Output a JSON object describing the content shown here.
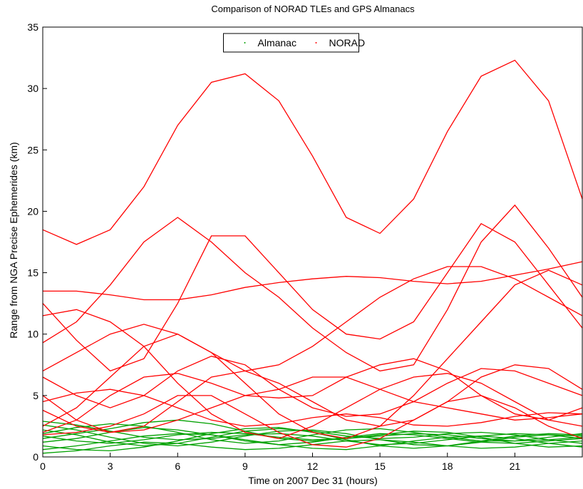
{
  "chart_data": {
    "type": "line",
    "title": "Comparison of NORAD TLEs and GPS Almanacs",
    "x_label": "Time on 2007 Dec 31 (hours)",
    "y_label": "Range from NGA Precise Ephemerides (km)",
    "x": [
      0,
      1.5,
      3,
      4.5,
      6,
      7.5,
      9,
      10.5,
      12,
      13.5,
      15,
      16.5,
      18,
      19.5,
      21,
      22.5,
      24
    ],
    "xlim": [
      0,
      24
    ],
    "xticks": [
      0,
      3,
      6,
      9,
      12,
      15,
      18,
      21
    ],
    "ylim": [
      0,
      35
    ],
    "yticks": [
      0,
      5,
      10,
      15,
      20,
      25,
      30,
      35
    ],
    "grid": false,
    "legend": "top",
    "series": [
      {
        "name": "Almanac",
        "color": "#00a000",
        "values": [
          [
            1.2,
            1.5,
            2.0,
            2.4,
            2.2,
            1.8,
            1.3,
            1.0,
            1.2,
            1.6,
            1.9,
            1.8,
            1.5,
            1.2,
            1.1,
            1.3,
            1.5
          ],
          [
            2.6,
            2.2,
            1.6,
            1.1,
            0.9,
            1.2,
            1.7,
            2.1,
            2.2,
            1.9,
            1.4,
            1.0,
            0.9,
            1.2,
            1.6,
            1.8,
            1.7
          ],
          [
            0.6,
            0.9,
            1.3,
            1.7,
            1.9,
            1.8,
            1.4,
            1.0,
            0.7,
            0.6,
            0.9,
            1.3,
            1.6,
            1.7,
            1.5,
            1.1,
            0.8
          ],
          [
            1.9,
            2.4,
            2.7,
            2.5,
            2.0,
            1.4,
            1.1,
            1.3,
            1.8,
            2.2,
            2.3,
            2.0,
            1.6,
            1.3,
            1.3,
            1.6,
            1.9
          ],
          [
            0.9,
            0.6,
            0.5,
            0.8,
            1.3,
            1.9,
            2.3,
            2.4,
            2.0,
            1.4,
            0.9,
            0.7,
            0.9,
            1.3,
            1.7,
            1.9,
            1.8
          ],
          [
            2.2,
            1.8,
            1.2,
            0.9,
            1.1,
            1.6,
            2.1,
            2.3,
            2.1,
            1.7,
            1.5,
            1.6,
            1.9,
            2.0,
            1.8,
            1.4,
            1.1
          ],
          [
            1.5,
            1.9,
            2.3,
            2.8,
            3.0,
            2.7,
            2.1,
            1.5,
            1.3,
            1.5,
            1.8,
            2.1,
            2.0,
            1.6,
            1.1,
            0.8,
            0.9
          ],
          [
            0.3,
            0.5,
            0.9,
            1.2,
            1.1,
            0.8,
            0.6,
            0.7,
            1.0,
            1.3,
            1.4,
            1.2,
            0.9,
            0.7,
            0.8,
            1.1,
            1.3
          ],
          [
            1.7,
            1.3,
            1.1,
            1.4,
            1.8,
            2.0,
            1.9,
            1.6,
            1.4,
            1.5,
            1.7,
            1.9,
            1.8,
            1.5,
            1.3,
            1.4,
            1.6
          ],
          [
            2.9,
            2.6,
            2.1,
            1.6,
            1.4,
            1.5,
            1.8,
            1.9,
            1.7,
            1.3,
            1.0,
            1.1,
            1.4,
            1.7,
            1.9,
            1.8,
            1.5
          ]
        ]
      },
      {
        "name": "NORAD",
        "color": "#ff0000",
        "values": [
          [
            18.5,
            17.3,
            18.5,
            22,
            27,
            30.5,
            31.2,
            29,
            24.5,
            19.5,
            18.2,
            21,
            26.5,
            31,
            32.3,
            29,
            21
          ],
          [
            13.5,
            13.5,
            13.2,
            12.8,
            12.8,
            13.2,
            13.8,
            14.2,
            14.5,
            14.7,
            14.6,
            14.3,
            14.1,
            14.3,
            14.8,
            15.3,
            15.9
          ],
          [
            9.3,
            11,
            14,
            17.5,
            19.5,
            17.5,
            15,
            13,
            10.5,
            8.5,
            7,
            7.5,
            12,
            17.5,
            20.5,
            17,
            13
          ],
          [
            12.5,
            9.5,
            7,
            8,
            12.5,
            18,
            18,
            15,
            12,
            10,
            9.6,
            11,
            15,
            19,
            17.5,
            14,
            10.5
          ],
          [
            6.5,
            5,
            4,
            5,
            7,
            8.2,
            7.5,
            5.5,
            4,
            3.3,
            3.5,
            4.5,
            6,
            7.2,
            7,
            6,
            5
          ],
          [
            3.8,
            2.5,
            2,
            2.5,
            4.5,
            6.5,
            7,
            6,
            4.5,
            3,
            2.5,
            3,
            4.5,
            6.5,
            7.5,
            7.2,
            5.5
          ],
          [
            2,
            3,
            5,
            6.5,
            6.8,
            6,
            5,
            4.8,
            5,
            6.5,
            7.5,
            8,
            7,
            5,
            3.5,
            3,
            4
          ],
          [
            5,
            3,
            2,
            2.2,
            3,
            4,
            5,
            5.5,
            6.5,
            6.5,
            5.5,
            4.5,
            4,
            3.5,
            3,
            3.2,
            3.5
          ],
          [
            1.8,
            2,
            2.5,
            3.5,
            5,
            5,
            3.5,
            2,
            1,
            0.8,
            1.5,
            3,
            4.5,
            5,
            4,
            2.5,
            1.5
          ],
          [
            4.5,
            5.2,
            5.5,
            5,
            4,
            3,
            2.5,
            2.7,
            3.2,
            3.5,
            3.2,
            2.6,
            2.5,
            2.8,
            3.3,
            3.6,
            3.5
          ],
          [
            7,
            8.5,
            10,
            10.8,
            10,
            8.5,
            7,
            7.5,
            9,
            11,
            13,
            14.5,
            15.5,
            15.5,
            14.5,
            13,
            11.5
          ],
          [
            2.5,
            4,
            6.5,
            9,
            10,
            8.5,
            6,
            3.5,
            2,
            1.5,
            2.5,
            5,
            8,
            11,
            14,
            15.2,
            14
          ],
          [
            11.5,
            12,
            11,
            9,
            6,
            3.5,
            2,
            1.5,
            2.5,
            4,
            5.5,
            6.5,
            6.8,
            6,
            4.5,
            3,
            2.5
          ]
        ]
      }
    ]
  }
}
